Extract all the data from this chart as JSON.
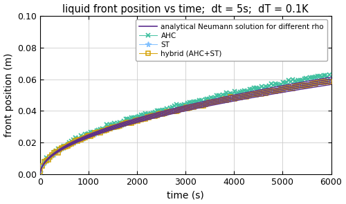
{
  "title": "liquid front position vs time;  dt = 5s;  dT = 0.1K",
  "xlabel": "time (s)",
  "ylabel": "front position (m)",
  "xlim": [
    0,
    6000
  ],
  "ylim": [
    0,
    0.1
  ],
  "xticks": [
    0,
    1000,
    2000,
    3000,
    4000,
    5000,
    6000
  ],
  "yticks": [
    0,
    0.02,
    0.04,
    0.06,
    0.08,
    0.1
  ],
  "analytical_color": "#5b2d8e",
  "ahc_color": "#40c0a0",
  "st_color": "#80c0ff",
  "hybrid_color": "#d4a000",
  "legend_labels": [
    "analytical Neumann solution for different rho",
    "AHC",
    "ST",
    "hybrid (AHC+ST)"
  ],
  "C_anal": 0.000762,
  "C_ahc": 0.000814,
  "C_st": 0.000762,
  "C_hybrid": 0.000762,
  "n_anal_lines": 5,
  "anal_spread": 1.5e-05,
  "marker_every": 8
}
